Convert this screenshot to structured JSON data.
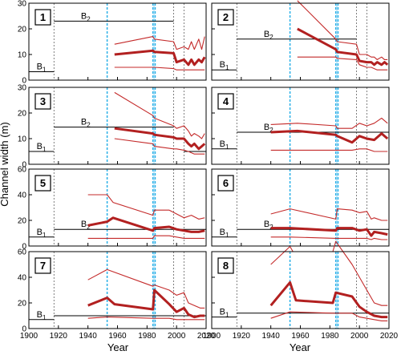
{
  "figure": {
    "ylabel": "Channel width (m)",
    "xlabel": "Year",
    "xlim": [
      1900,
      2020
    ],
    "xticks": [
      1900,
      1920,
      1940,
      1960,
      1980,
      2000,
      2020
    ],
    "colors": {
      "mean": "#b22020",
      "range": "#c42a2a",
      "ref": "#000000",
      "blue": "#2ab0e8",
      "grid": "#606060"
    },
    "vlines_blue": [
      1953,
      1984,
      1985.5
    ],
    "vlines_gray": [
      1917,
      1998,
      2005
    ]
  },
  "chart_data": [
    {
      "type": "line",
      "panel": "1",
      "ylim": [
        0,
        30
      ],
      "yticks": [
        0,
        10,
        20,
        30
      ],
      "ref_lines": [
        {
          "label": "B1",
          "sub": "1",
          "x": [
            1900,
            1917
          ],
          "y": 3.3
        },
        {
          "label": "B2",
          "sub": "2",
          "x": [
            1917,
            1998
          ],
          "y": 23
        }
      ],
      "series": [
        {
          "role": "upper",
          "x": [
            1958,
            1984,
            1985,
            1998,
            2000,
            2005,
            2008,
            2010,
            2012,
            2015,
            2017,
            2019
          ],
          "y": [
            14,
            17,
            16,
            15,
            12,
            13,
            12,
            15,
            12,
            16,
            12,
            17
          ]
        },
        {
          "role": "mean",
          "x": [
            1958,
            1984,
            1985,
            1998,
            2000,
            2005,
            2008,
            2010,
            2012,
            2015,
            2017,
            2019
          ],
          "y": [
            10,
            11.5,
            11,
            10.5,
            7,
            8,
            6,
            8,
            6,
            8,
            7,
            9
          ]
        },
        {
          "role": "lower",
          "x": [
            1958,
            1984,
            1985,
            1998,
            2000,
            2005,
            2008,
            2010,
            2012,
            2015,
            2017,
            2019
          ],
          "y": [
            5,
            5,
            5,
            4.5,
            4,
            4,
            4,
            4,
            4,
            4,
            4,
            4
          ]
        }
      ]
    },
    {
      "type": "line",
      "panel": "2",
      "ylim": [
        0,
        30
      ],
      "yticks": [
        0,
        10,
        20,
        30
      ],
      "ref_lines": [
        {
          "label": "B1",
          "sub": "1",
          "x": [
            1900,
            1917
          ],
          "y": 4
        },
        {
          "label": "B2",
          "sub": "2",
          "x": [
            1917,
            1998
          ],
          "y": 16
        }
      ],
      "series": [
        {
          "role": "upper",
          "x": [
            1958,
            1984,
            1985,
            1998,
            2000,
            2005,
            2008,
            2010,
            2012,
            2015,
            2017,
            2019
          ],
          "y": [
            31,
            16,
            15,
            14,
            10,
            10,
            9,
            9,
            8,
            9,
            8,
            8
          ]
        },
        {
          "role": "mean",
          "x": [
            1958,
            1984,
            1985,
            1998,
            2000,
            2005,
            2008,
            2010,
            2012,
            2015,
            2017,
            2019
          ],
          "y": [
            20,
            12,
            11,
            10,
            7.5,
            7,
            7,
            6,
            7,
            6,
            7,
            6
          ]
        },
        {
          "role": "lower",
          "x": [
            1958,
            1984,
            1985,
            1998,
            2000,
            2005,
            2008,
            2010,
            2012,
            2015,
            2017,
            2019
          ],
          "y": [
            9,
            9,
            8.5,
            8,
            6,
            5,
            5,
            4.5,
            4,
            4,
            4,
            4
          ]
        }
      ]
    },
    {
      "type": "line",
      "panel": "3",
      "ylim": [
        0,
        30
      ],
      "yticks": [
        0,
        10,
        20,
        30
      ],
      "ref_lines": [
        {
          "label": "B1",
          "sub": "1",
          "x": [
            1900,
            1917
          ],
          "y": 5
        },
        {
          "label": "B2",
          "sub": "2",
          "x": [
            1917,
            1998
          ],
          "y": 14.5
        },
        {
          "label": "",
          "sub": "",
          "x": [
            2005,
            2020
          ],
          "y": 5
        }
      ],
      "series": [
        {
          "role": "upper",
          "x": [
            1958,
            1984,
            1985,
            1998,
            2000,
            2005,
            2008,
            2010,
            2012,
            2015,
            2017,
            2019
          ],
          "y": [
            28,
            19,
            18,
            15,
            14,
            15,
            13,
            11,
            12,
            11,
            10,
            12
          ]
        },
        {
          "role": "mean",
          "x": [
            1958,
            1984,
            1985,
            1998,
            2000,
            2005,
            2008,
            2010,
            2012,
            2015,
            2017,
            2019
          ],
          "y": [
            14,
            12,
            11.5,
            10.5,
            10,
            10,
            8,
            7,
            8,
            6,
            7,
            8
          ]
        },
        {
          "role": "lower",
          "x": [
            1958,
            1984,
            1985,
            1998,
            2000,
            2005,
            2008,
            2010,
            2012,
            2015,
            2017,
            2019
          ],
          "y": [
            10,
            8,
            7,
            6,
            6,
            5.5,
            5,
            4.5,
            4,
            4,
            4,
            4
          ]
        }
      ]
    },
    {
      "type": "line",
      "panel": "4",
      "ylim": [
        0,
        30
      ],
      "yticks": [
        0,
        10,
        20,
        30
      ],
      "ref_lines": [
        {
          "label": "B1",
          "sub": "1",
          "x": [
            1900,
            1917
          ],
          "y": 6
        },
        {
          "label": "B2",
          "sub": "2",
          "x": [
            1917,
            2020
          ],
          "y": 12.5
        }
      ],
      "series": [
        {
          "role": "upper",
          "x": [
            1940,
            1958,
            1984,
            1985,
            1995,
            2000,
            2005,
            2010,
            2015,
            2019
          ],
          "y": [
            15.5,
            16,
            15,
            14,
            14,
            16,
            15,
            16,
            18,
            16
          ]
        },
        {
          "role": "mean",
          "x": [
            1940,
            1958,
            1984,
            1985,
            1995,
            2000,
            2005,
            2010,
            2015,
            2019
          ],
          "y": [
            12.5,
            13,
            11.5,
            11,
            8.5,
            11,
            10,
            9.5,
            12,
            10
          ]
        },
        {
          "role": "lower",
          "x": [
            1940,
            1958,
            1984,
            1985,
            1995,
            2000,
            2005,
            2010,
            2015,
            2019
          ],
          "y": [
            5.5,
            5.5,
            5.5,
            5.5,
            5.5,
            6,
            6,
            5,
            5,
            5
          ]
        }
      ]
    },
    {
      "type": "line",
      "panel": "5",
      "ylim": [
        0,
        60
      ],
      "yticks": [
        0,
        20,
        40,
        60
      ],
      "ref_lines": [
        {
          "label": "B1",
          "sub": "1",
          "x": [
            1900,
            1917
          ],
          "y": 7
        },
        {
          "label": "B2",
          "sub": "2",
          "x": [
            1917,
            2020
          ],
          "y": 13
        }
      ],
      "series": [
        {
          "role": "upper",
          "x": [
            1940,
            1953,
            1957,
            1984,
            1985,
            1995,
            2000,
            2005,
            2010,
            2015,
            2019
          ],
          "y": [
            40,
            40,
            34,
            24,
            28,
            28,
            25,
            22,
            24,
            21,
            22
          ]
        },
        {
          "role": "mean",
          "x": [
            1940,
            1953,
            1957,
            1984,
            1985,
            1995,
            2000,
            2005,
            2010,
            2015,
            2019
          ],
          "y": [
            16,
            19,
            22,
            12,
            14,
            15,
            13,
            12,
            11,
            11,
            12
          ]
        },
        {
          "role": "lower",
          "x": [
            1940,
            1953,
            1957,
            1984,
            1985,
            1995,
            2000,
            2005,
            2010,
            2015,
            2019
          ],
          "y": [
            6,
            6,
            6,
            6,
            8,
            8,
            7,
            6,
            6,
            6,
            6
          ]
        }
      ]
    },
    {
      "type": "line",
      "panel": "6",
      "ylim": [
        0,
        60
      ],
      "yticks": [
        0,
        20,
        40,
        60
      ],
      "ref_lines": [
        {
          "label": "B1",
          "sub": "1",
          "x": [
            1900,
            1917
          ],
          "y": 7
        },
        {
          "label": "B2",
          "sub": "2",
          "x": [
            1917,
            2020
          ],
          "y": 13
        }
      ],
      "series": [
        {
          "role": "upper",
          "x": [
            1940,
            1953,
            1984,
            1985,
            1995,
            2000,
            2005,
            2008,
            2010,
            2015,
            2019
          ],
          "y": [
            25,
            29,
            21,
            29,
            28,
            26,
            27,
            21,
            22,
            20,
            20
          ]
        },
        {
          "role": "mean",
          "x": [
            1940,
            1953,
            1984,
            1985,
            1995,
            2000,
            2005,
            2008,
            2010,
            2015,
            2019
          ],
          "y": [
            14,
            14,
            12,
            14,
            14,
            12,
            13,
            8,
            11,
            10,
            9
          ]
        },
        {
          "role": "lower",
          "x": [
            1940,
            1953,
            1984,
            1985,
            1995,
            2000,
            2005,
            2008,
            2010,
            2015,
            2019
          ],
          "y": [
            7,
            7,
            6,
            6,
            6,
            6,
            6,
            5,
            6,
            5,
            5
          ]
        }
      ]
    },
    {
      "type": "line",
      "panel": "7",
      "ylim": [
        0,
        60
      ],
      "yticks": [
        0,
        20,
        40,
        60
      ],
      "ref_lines": [
        {
          "label": "B1",
          "sub": "1",
          "x": [
            1900,
            1917
          ],
          "y": 7
        },
        {
          "label": "",
          "sub": "",
          "x": [
            1917,
            2020
          ],
          "y": 10
        }
      ],
      "series": [
        {
          "role": "upper",
          "x": [
            1940,
            1953,
            1984,
            1985,
            1995,
            2000,
            2005,
            2008,
            2012,
            2016,
            2019
          ],
          "y": [
            38,
            46,
            33,
            34,
            30,
            26,
            28,
            20,
            18,
            16,
            16
          ]
        },
        {
          "role": "mean",
          "x": [
            1940,
            1953,
            1958,
            1984,
            1985,
            1995,
            2000,
            2005,
            2008,
            2012,
            2016,
            2019
          ],
          "y": [
            18,
            24,
            19,
            15,
            30,
            19,
            13,
            16,
            11,
            9,
            10,
            10
          ]
        },
        {
          "role": "lower",
          "x": [
            1940,
            1953,
            1984,
            1985,
            1995,
            2000,
            2005,
            2008,
            2012,
            2016,
            2019
          ],
          "y": [
            8,
            9,
            8,
            8,
            8,
            7,
            7,
            7,
            7,
            7,
            7
          ]
        }
      ]
    },
    {
      "type": "line",
      "panel": "8",
      "ylim": [
        0,
        60
      ],
      "yticks": [
        0,
        20,
        40,
        60
      ],
      "ref_lines": [
        {
          "label": "B1",
          "sub": "1",
          "x": [
            1900,
            1917
          ],
          "y": 9
        },
        {
          "label": "",
          "sub": "",
          "x": [
            1917,
            2020
          ],
          "y": 12
        }
      ],
      "series": [
        {
          "role": "upper",
          "x": [
            1940,
            1953,
            1955,
            1982,
            1984,
            1995,
            2000,
            2005,
            2010,
            2015,
            2019
          ],
          "y": [
            50,
            64,
            60,
            60,
            68,
            50,
            40,
            30,
            20,
            18,
            18
          ]
        },
        {
          "role": "mean",
          "x": [
            1940,
            1953,
            1957,
            1982,
            1984,
            1995,
            2000,
            2005,
            2010,
            2015,
            2019
          ],
          "y": [
            18,
            36,
            22,
            20,
            28,
            25,
            17,
            13,
            10,
            9,
            9
          ]
        },
        {
          "role": "lower",
          "x": [
            1940,
            1953,
            1982,
            1984,
            1995,
            2000,
            2005,
            2010,
            2015,
            2019
          ],
          "y": [
            8,
            13,
            12,
            12,
            12,
            9,
            8,
            7,
            6,
            6
          ]
        }
      ]
    }
  ]
}
